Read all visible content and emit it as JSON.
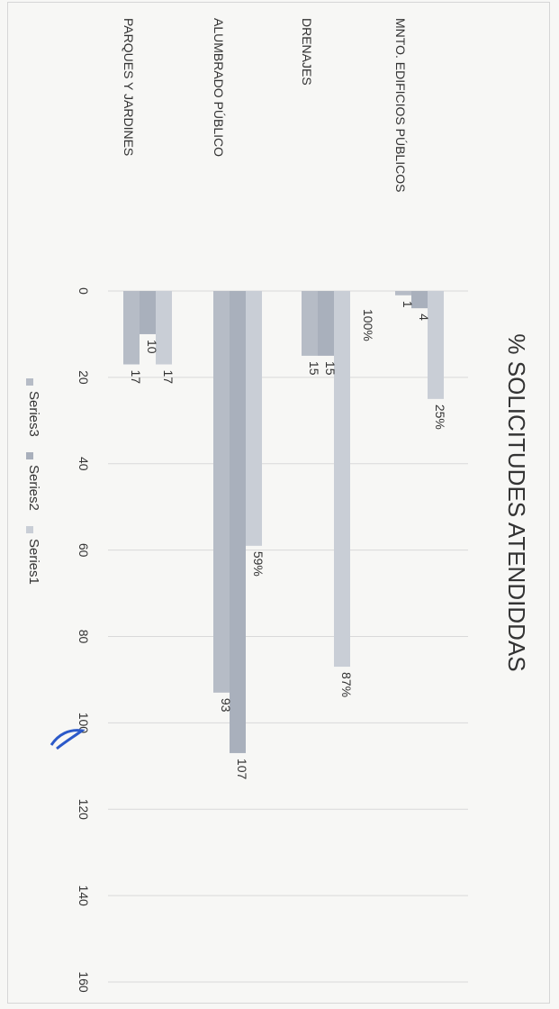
{
  "chart_data": {
    "type": "bar",
    "orientation": "horizontal",
    "rotated": "90deg-clockwise",
    "title": "% SOLICITUDES ATENDIDDAS",
    "categories": [
      "MNTO. EDIFICIOS PÚBLICOS",
      "DRENAJES",
      "ALUMBRADO PÚBLICO",
      "PARQUES Y JARDINES"
    ],
    "series": [
      {
        "name": "Series1",
        "values": [
          25,
          87,
          59,
          17
        ],
        "labels": [
          "25%",
          "87%",
          "59%",
          "17"
        ],
        "color": "#c9ced6"
      },
      {
        "name": "Series2",
        "values": [
          4,
          15,
          107,
          10
        ],
        "labels": [
          "4",
          "15",
          "107",
          "10"
        ],
        "color": "#a9b0bc"
      },
      {
        "name": "Series3",
        "values": [
          1,
          15,
          93,
          17
        ],
        "labels": [
          "1",
          "15",
          "93",
          "17"
        ],
        "color": "#b6bcc6"
      }
    ],
    "extra_labels": [
      {
        "category": "MNTO. EDIFICIOS PÚBLICOS",
        "text": "100%"
      }
    ],
    "xlim": [
      0,
      160
    ],
    "x_ticks": [
      "0",
      "20",
      "40",
      "60",
      "80",
      "100",
      "120",
      "140",
      "160"
    ],
    "grid": true,
    "legend": {
      "position": "bottom",
      "entries": [
        "Series3",
        "Series2",
        "Series1"
      ]
    }
  }
}
